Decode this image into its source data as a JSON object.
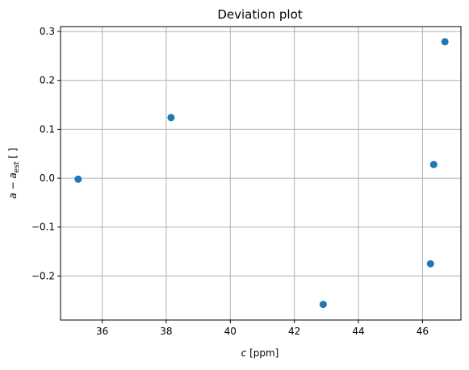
{
  "chart_data": {
    "type": "scatter",
    "title": "Deviation plot",
    "xlabel_var": "c",
    "xlabel_unit": " [ppm]",
    "ylabel_main": "a − a",
    "ylabel_sub": "est",
    "ylabel_unit": " [ ]",
    "xlim": [
      34.7,
      47.2
    ],
    "ylim": [
      -0.29,
      0.31
    ],
    "xticks": [
      36,
      38,
      40,
      42,
      44,
      46
    ],
    "yticks": [
      -0.2,
      -0.1,
      0.0,
      0.1,
      0.2,
      0.3
    ],
    "xtick_labels": [
      "36",
      "38",
      "40",
      "42",
      "44",
      "46"
    ],
    "ytick_labels": [
      "−0.2",
      "−0.1",
      "0.0",
      "0.1",
      "0.2",
      "0.3"
    ],
    "grid": true,
    "marker_color": "#1f77b4",
    "points": [
      {
        "x": 35.25,
        "y": -0.002
      },
      {
        "x": 38.15,
        "y": 0.124
      },
      {
        "x": 42.9,
        "y": -0.258
      },
      {
        "x": 46.25,
        "y": -0.175
      },
      {
        "x": 46.35,
        "y": 0.028
      },
      {
        "x": 46.7,
        "y": 0.279
      }
    ]
  }
}
